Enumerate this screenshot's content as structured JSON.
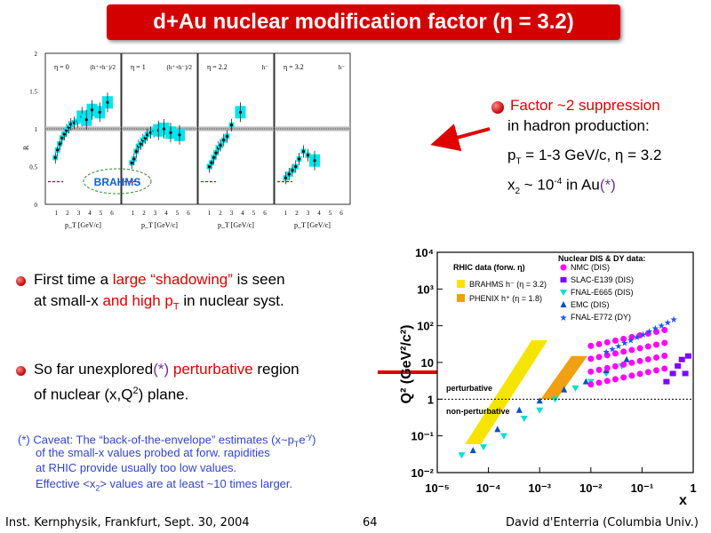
{
  "title": "d+Au nuclear modification factor (η = 3.2)",
  "top_figure": {
    "ylabel": "R_dAu",
    "y_ticks": [
      "0",
      "0.5",
      "1",
      "1.5",
      "2"
    ],
    "x_ticks": [
      "1",
      "2",
      "3",
      "4",
      "5",
      "6"
    ],
    "xlabel": "p_T [GeV/c]",
    "panels": [
      {
        "eta": "η = 0",
        "particle": "(h⁺+h⁻)/2",
        "points": [
          [
            0.9,
            0.62
          ],
          [
            1.1,
            0.72
          ],
          [
            1.3,
            0.8
          ],
          [
            1.5,
            0.88
          ],
          [
            1.7,
            0.93
          ],
          [
            1.9,
            0.98
          ],
          [
            2.1,
            1.02
          ],
          [
            2.3,
            1.06
          ],
          [
            2.6,
            1.08
          ],
          [
            2.9,
            1.1
          ],
          [
            3.3,
            1.16
          ],
          [
            3.7,
            1.12
          ],
          [
            4.2,
            1.25
          ],
          [
            4.9,
            1.22
          ],
          [
            5.6,
            1.35
          ]
        ]
      },
      {
        "eta": "η = 1",
        "particle": "(h⁺+h⁻)/2",
        "points": [
          [
            0.9,
            0.55
          ],
          [
            1.1,
            0.6
          ],
          [
            1.3,
            0.7
          ],
          [
            1.5,
            0.77
          ],
          [
            1.7,
            0.8
          ],
          [
            1.9,
            0.85
          ],
          [
            2.1,
            0.88
          ],
          [
            2.3,
            0.92
          ],
          [
            2.6,
            0.95
          ],
          [
            2.9,
            0.97
          ],
          [
            3.3,
            0.98
          ],
          [
            3.8,
            1.0
          ],
          [
            4.4,
            0.95
          ],
          [
            5.2,
            0.92
          ]
        ]
      },
      {
        "eta": "η = 2.2",
        "particle": "h⁻",
        "points": [
          [
            1.0,
            0.5
          ],
          [
            1.2,
            0.55
          ],
          [
            1.4,
            0.62
          ],
          [
            1.6,
            0.68
          ],
          [
            1.8,
            0.75
          ],
          [
            2.0,
            0.78
          ],
          [
            2.3,
            0.85
          ],
          [
            2.6,
            0.9
          ],
          [
            3.0,
            1.05
          ],
          [
            3.8,
            1.22
          ]
        ]
      },
      {
        "eta": "η = 3.2",
        "particle": "h⁻",
        "points": [
          [
            1.0,
            0.35
          ],
          [
            1.3,
            0.4
          ],
          [
            1.6,
            0.45
          ],
          [
            1.9,
            0.5
          ],
          [
            2.2,
            0.6
          ],
          [
            2.6,
            0.7
          ],
          [
            3.0,
            0.65
          ],
          [
            3.6,
            0.58
          ]
        ]
      }
    ],
    "brahms_logo": "BRAHMS"
  },
  "callout": {
    "line1": "Factor ~2 suppression",
    "line2": "in hadron production:",
    "line3_a": "p",
    "line3_sub": "T",
    "line3_b": " = 1-3 GeV/c, η = 3.2",
    "line4_a": "x",
    "line4_sub": "2",
    "line4_b": " ~ 10",
    "line4_sup": "-4",
    "line4_c": " in Au",
    "line4_star": "(*)"
  },
  "bullets": [
    {
      "a": "First time a ",
      "b_red": "large “shadowing”",
      "c": " is seen",
      "line2_a": "at small-x ",
      "line2_red": "and high p",
      "line2_sub": "T",
      "line2_c": " in nuclear syst."
    },
    {
      "a": "So far unexplored",
      "b_purple": "(*)",
      "c_red": " perturbative",
      "d": " region",
      "line2": "of nuclear (x,Q",
      "line2_sup": "2",
      "line2_end": ") plane."
    }
  ],
  "caveat": {
    "line1_a": "(*) Caveat: The “back-of-the-envelope” estimates (x~p",
    "line1_sub": "T",
    "line1_b": "e",
    "line1_sup": "-y",
    "line1_c": ")",
    "line2": "of the small-x values probed at forw. rapidities",
    "line3": "at RHIC provide usually too low values.",
    "line4_a": "Effective <x",
    "line4_sub": "2",
    "line4_b": "> values are at least ~10 times larger."
  },
  "chart_data": {
    "type": "scatter",
    "ylabel": "Q² (GeV²/c²)",
    "xlabel": "x",
    "x_ticks": [
      "10⁻⁵",
      "10⁻⁴",
      "10⁻³",
      "10⁻²",
      "10⁻¹",
      "1"
    ],
    "y_ticks": [
      "10⁻²",
      "10⁻¹",
      "1",
      "10",
      "10²",
      "10³",
      "10⁴"
    ],
    "xlim": [
      1e-05,
      1
    ],
    "ylim": [
      0.01,
      10000
    ],
    "log_x": true,
    "log_y": true,
    "region_labels": [
      "perturbative",
      "non-perturbative"
    ],
    "boundary_q2": 1,
    "rhic_legend_title": "RHIC data (forw. η)",
    "rhic_series": [
      {
        "name": "BRAHMS h⁻ (η = 3.2)",
        "color": "#f5e400",
        "x_range": [
          5e-05,
          0.001
        ],
        "q2_range": [
          0.06,
          40
        ]
      },
      {
        "name": "PHENIX h⁺ (η = 1.8)",
        "color": "#f0a010",
        "x_range": [
          0.0015,
          0.006
        ],
        "q2_range": [
          1,
          15
        ]
      }
    ],
    "nuclear_legend_title": "Nuclear DIS & DY data:",
    "nuclear_series": [
      {
        "name": "NMC (DIS)",
        "color": "#ff00ff",
        "marker": "circle"
      },
      {
        "name": "SLAC-E139 (DIS)",
        "color": "#8000ff",
        "marker": "square"
      },
      {
        "name": "FNAL-E665 (DIS)",
        "color": "#00e0d0",
        "marker": "triangle-down"
      },
      {
        "name": "EMC (DIS)",
        "color": "#0050c0",
        "marker": "triangle-up"
      },
      {
        "name": "FNAL-E772 (DY)",
        "color": "#2050ff",
        "marker": "star"
      }
    ]
  },
  "footer": {
    "left": "Inst. Kernphysik, Frankfurt, Sept. 30, 2004",
    "page": "64",
    "right": "David d'Enterria (Columbia Univ.)"
  },
  "colors": {
    "title_bg": "#d40000",
    "accent_red": "#e00000",
    "band_cyan": "#00e5ee"
  }
}
